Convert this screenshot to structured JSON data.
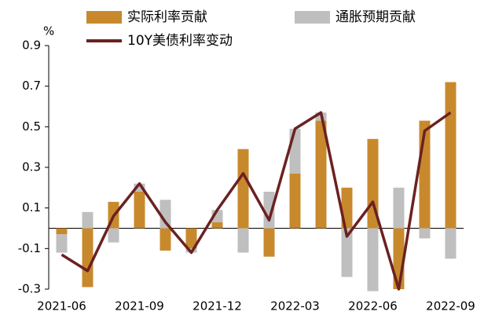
{
  "chart_data": {
    "type": "bar",
    "y_unit": "%",
    "categories": [
      "2021-06",
      null,
      null,
      "2021-09",
      null,
      null,
      "2021-12",
      null,
      null,
      "2022-03",
      null,
      null,
      "2022-06",
      null,
      null,
      "2022-09"
    ],
    "series": [
      {
        "name": "实际利率贡献",
        "type": "bar",
        "color": "#c8892d",
        "values": [
          -0.03,
          -0.29,
          0.13,
          0.18,
          -0.11,
          -0.1,
          0.03,
          0.39,
          -0.14,
          0.27,
          0.53,
          0.2,
          0.44,
          -0.3,
          0.53,
          0.72
        ]
      },
      {
        "name": "通胀预期贡献",
        "type": "bar",
        "color": "#bfbfbf",
        "values": [
          -0.09,
          0.08,
          -0.07,
          0.04,
          0.14,
          -0.02,
          0.06,
          -0.12,
          0.18,
          0.22,
          0.04,
          -0.24,
          -0.31,
          0.2,
          -0.05,
          -0.15
        ]
      },
      {
        "name": "10Y美债利率变动",
        "type": "line",
        "color": "#6b2121",
        "values": [
          -0.13,
          -0.21,
          0.06,
          0.22,
          0.03,
          -0.12,
          0.09,
          0.27,
          0.04,
          0.49,
          0.57,
          -0.04,
          0.13,
          -0.3,
          0.48,
          0.57
        ]
      }
    ],
    "stacked": true,
    "ylim": [
      -0.3,
      0.9
    ],
    "yticks": [
      -0.3,
      -0.1,
      0.1,
      0.3,
      0.5,
      0.7,
      0.9
    ],
    "grid": false
  }
}
